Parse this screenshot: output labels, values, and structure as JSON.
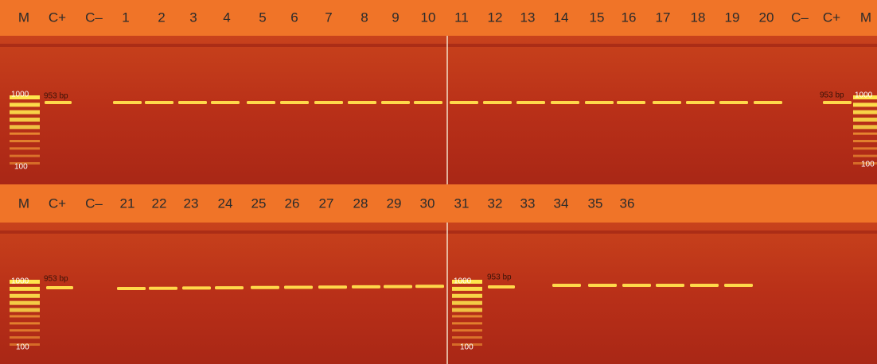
{
  "top_row": {
    "lanes": [
      "M",
      "C+",
      "C–",
      "1",
      "2",
      "3",
      "4",
      "5",
      "6",
      "7",
      "8",
      "9",
      "10",
      "11",
      "12",
      "13",
      "14",
      "15",
      "16",
      "17",
      "18",
      "19",
      "20",
      "C–",
      "C+",
      "M"
    ]
  },
  "bottom_row": {
    "lanes": [
      "M",
      "C+",
      "C–",
      "21",
      "22",
      "23",
      "24",
      "25",
      "26",
      "27",
      "28",
      "29",
      "30",
      "31",
      "32",
      "33",
      "34",
      "35",
      "36"
    ]
  },
  "gels": [
    {
      "marker_high": "1000",
      "size": "953 bp",
      "marker_low": "100"
    },
    {
      "marker_high": "1000",
      "size": "953 bp",
      "marker_low": "100"
    },
    {
      "marker_high": "1000",
      "size": "953 bp",
      "marker_low": "100"
    },
    {
      "marker_high": "1000",
      "size": "953 bp",
      "marker_low": "100"
    }
  ]
}
